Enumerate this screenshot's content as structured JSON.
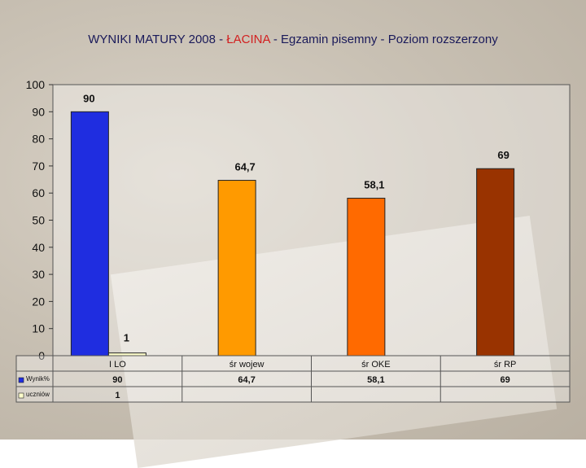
{
  "title": {
    "part1": "WYNIKI MATURY 2008 - ",
    "part2": "ŁACINA",
    "part3": "  - Egzamin pisemny - Poziom rozszerzony"
  },
  "colors": {
    "title_main": "#1a1a5a",
    "title_accent": "#d22020"
  },
  "chart_data": {
    "type": "bar",
    "categories": [
      "I LO",
      "śr  wojew",
      "śr  OKE",
      "śr  RP"
    ],
    "ylim": [
      0,
      100
    ],
    "yticks": [
      0,
      10,
      20,
      30,
      40,
      50,
      60,
      70,
      80,
      90,
      100
    ],
    "grid": false,
    "legend": "data-table",
    "series": [
      {
        "name": "Wynik%",
        "values": [
          90,
          64.7,
          58.1,
          69
        ],
        "labels": [
          "90",
          "64,7",
          "58,1",
          "69"
        ],
        "colors": [
          "#1f2de0",
          "#ff9a00",
          "#ff6a00",
          "#993300"
        ]
      },
      {
        "name": "uczniów",
        "values": [
          1,
          null,
          null,
          null
        ],
        "labels": [
          "1",
          "",
          "",
          ""
        ],
        "colors": [
          "#ffffcc",
          null,
          null,
          null
        ]
      }
    ]
  }
}
